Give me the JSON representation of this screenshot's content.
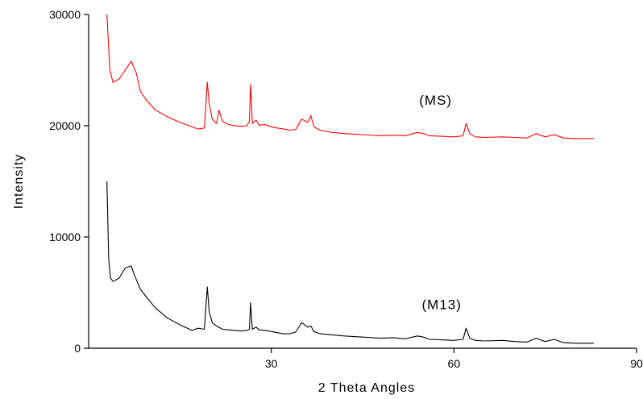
{
  "chart_data": {
    "type": "line",
    "title": "",
    "xlabel": "2 Theta Angles",
    "ylabel": "Intensity",
    "xlim": [
      0,
      90
    ],
    "ylim": [
      0,
      30000
    ],
    "xticks": [
      30,
      60,
      90
    ],
    "yticks": [
      0,
      10000,
      20000,
      30000
    ],
    "grid": false,
    "series": [
      {
        "name": "(MS)",
        "color": "#ff0000",
        "x": [
          3.0,
          3.5,
          4.0,
          5.0,
          6.0,
          7.0,
          7.8,
          8.5,
          9.5,
          11,
          13,
          15,
          17,
          18,
          19,
          19.5,
          19.8,
          20.3,
          21,
          21.4,
          22,
          23,
          24,
          25,
          26,
          26.4,
          26.6,
          26.9,
          27.5,
          28,
          29,
          30,
          31,
          32,
          33,
          34,
          35,
          36,
          36.5,
          37,
          38,
          40,
          42,
          45,
          48,
          50,
          52,
          54,
          55,
          56,
          58,
          60,
          61.5,
          62,
          62.6,
          63.5,
          65,
          68,
          70,
          72,
          73.5,
          75,
          76.5,
          78,
          80,
          83
        ],
        "y": [
          30000,
          25000,
          23900,
          24200,
          25000,
          25800,
          24800,
          23100,
          22300,
          21400,
          20800,
          20300,
          19900,
          19700,
          19800,
          23900,
          22000,
          20600,
          20200,
          21400,
          20400,
          20100,
          20000,
          19950,
          20000,
          20400,
          23700,
          20200,
          20500,
          20050,
          20100,
          19900,
          19800,
          19700,
          19600,
          19650,
          20600,
          20300,
          20900,
          19900,
          19600,
          19400,
          19300,
          19200,
          19100,
          19150,
          19100,
          19400,
          19300,
          19100,
          19050,
          19000,
          19100,
          20200,
          19300,
          19000,
          18950,
          19000,
          18950,
          18900,
          19300,
          19000,
          19200,
          18900,
          18850,
          18850
        ]
      },
      {
        "name": "(M13)",
        "color": "#000000",
        "x": [
          3.0,
          3.3,
          3.6,
          4.0,
          5.0,
          6.0,
          7.0,
          7.5,
          8.5,
          9.5,
          11,
          13,
          15,
          17,
          18,
          19,
          19.5,
          19.8,
          20.3,
          21,
          22,
          23,
          24,
          25,
          26,
          26.4,
          26.6,
          26.9,
          27.5,
          28,
          29,
          30,
          31,
          32,
          33,
          34,
          35,
          36,
          36.5,
          37,
          38,
          40,
          42,
          45,
          48,
          50,
          52,
          54,
          55,
          56,
          58,
          60,
          61.5,
          62,
          62.6,
          63.5,
          65,
          68,
          70,
          72,
          73.5,
          75,
          76.5,
          78,
          80,
          83
        ],
        "y": [
          15000,
          8000,
          6300,
          6000,
          6300,
          7200,
          7400,
          6600,
          5300,
          4600,
          3600,
          2700,
          2100,
          1600,
          1800,
          1700,
          5500,
          3300,
          2300,
          2000,
          1700,
          1650,
          1600,
          1550,
          1600,
          1700,
          4100,
          1700,
          1900,
          1650,
          1600,
          1500,
          1400,
          1300,
          1300,
          1450,
          2300,
          1900,
          2000,
          1500,
          1300,
          1200,
          1100,
          1000,
          900,
          950,
          850,
          1100,
          1000,
          800,
          750,
          700,
          800,
          1800,
          900,
          700,
          650,
          700,
          600,
          550,
          900,
          600,
          800,
          500,
          450,
          450
        ]
      }
    ],
    "annotations": [
      {
        "text": "(MS)",
        "x": 57,
        "y": 21900
      },
      {
        "text": "(M13)",
        "x": 58,
        "y": 3500
      }
    ]
  }
}
